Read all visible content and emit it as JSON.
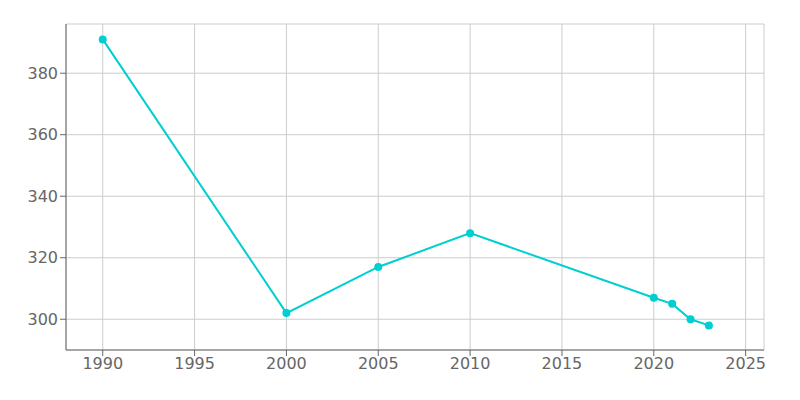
{
  "chart_data": {
    "type": "line",
    "x": [
      1990,
      2000,
      2005,
      2010,
      2020,
      2021,
      2022,
      2023
    ],
    "values": [
      391,
      302,
      317,
      328,
      307,
      305,
      300,
      298
    ],
    "color": "#00CED1",
    "marker": "circle",
    "xlim": [
      1988,
      2026
    ],
    "ylim": [
      290,
      396
    ],
    "xticks": [
      1990,
      1995,
      2000,
      2005,
      2010,
      2015,
      2020,
      2025
    ],
    "yticks": [
      300,
      320,
      340,
      360,
      380
    ],
    "grid": true
  }
}
